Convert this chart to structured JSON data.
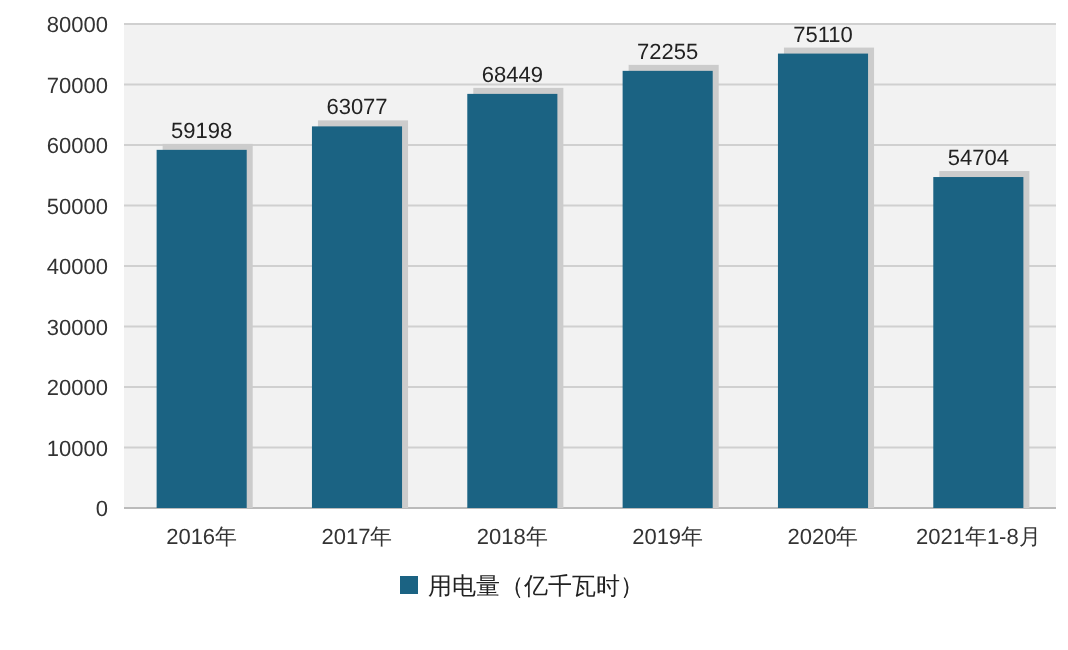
{
  "chart_data": {
    "type": "bar",
    "categories": [
      "2016年",
      "2017年",
      "2018年",
      "2019年",
      "2020年",
      "2021年1-8月"
    ],
    "series": [
      {
        "name": "用电量（亿千瓦时）",
        "color": "#1b6383",
        "values": [
          59198,
          63077,
          68449,
          72255,
          75110,
          54704
        ]
      }
    ],
    "ylim": [
      0,
      80000
    ],
    "yticks": [
      0,
      10000,
      20000,
      30000,
      40000,
      50000,
      60000,
      70000,
      80000
    ],
    "data_labels": true,
    "grid": "y",
    "legend": "bottom"
  }
}
